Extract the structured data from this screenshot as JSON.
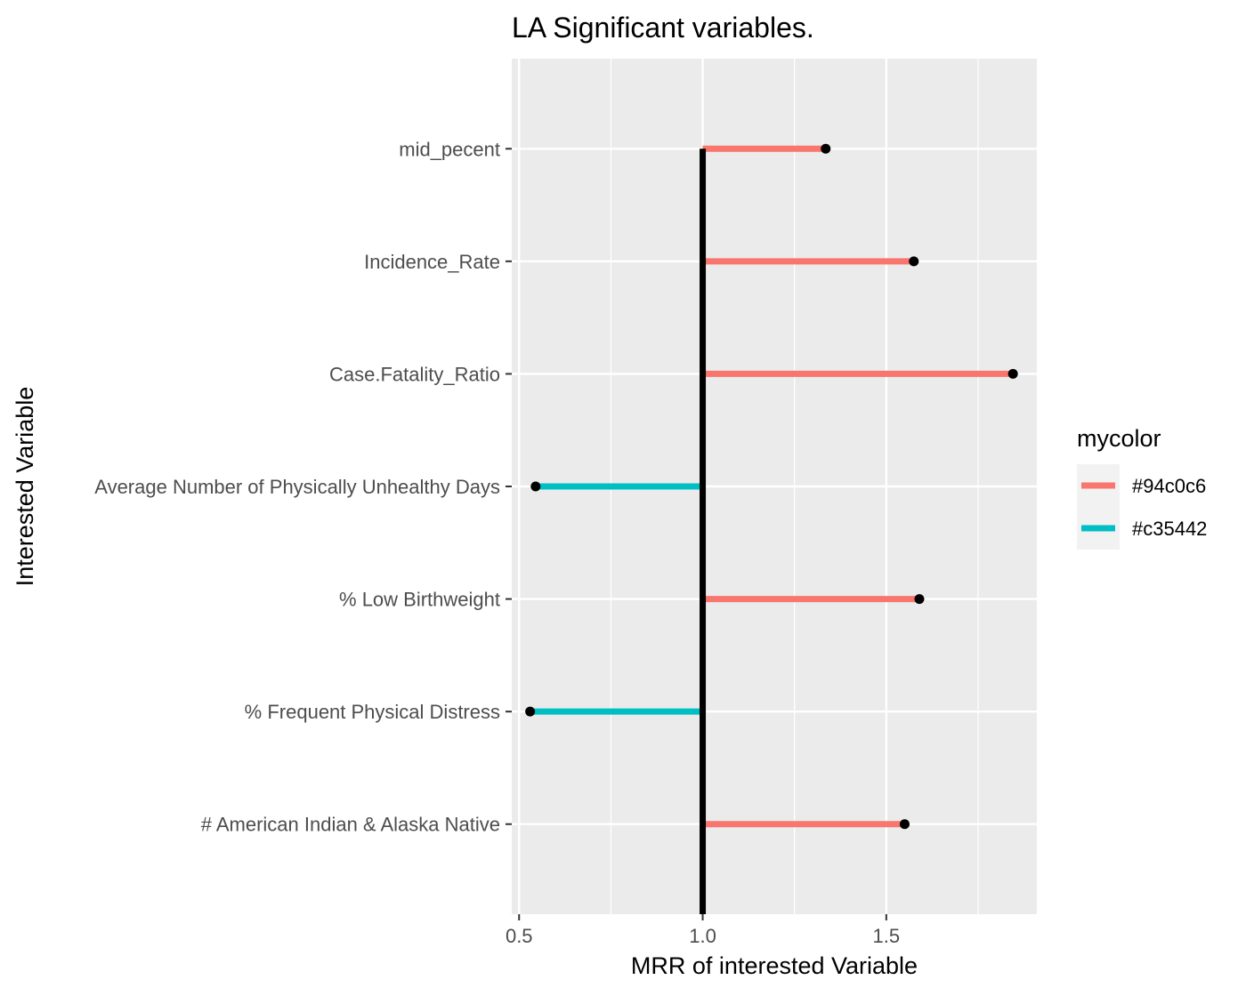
{
  "chart_data": {
    "type": "lollipop",
    "title": "LA Significant variables.",
    "xlabel": "MRR of interested Variable",
    "ylabel": "Interested Variable",
    "xlim": [
      0.48,
      1.91
    ],
    "xticks": [
      0.5,
      1.0,
      1.5
    ],
    "xtick_labels": [
      "0.5",
      "1.0",
      "1.5"
    ],
    "x_minor_ticks": [
      0.75,
      1.25,
      1.75
    ],
    "reference_line": 1.0,
    "categories": [
      "mid_pecent",
      "Incidence_Rate",
      "Case.Fatality_Ratio",
      "Average Number of Physically Unhealthy Days",
      "% Low Birthweight",
      "% Frequent Physical Distress",
      "# American Indian & Alaska Native"
    ],
    "values": [
      1.335,
      1.575,
      1.845,
      0.545,
      1.59,
      0.53,
      1.55
    ],
    "groups": [
      "#94c0c6",
      "#94c0c6",
      "#94c0c6",
      "#c35442",
      "#94c0c6",
      "#c35442",
      "#94c0c6"
    ],
    "legend": {
      "title": "mycolor",
      "position": "right",
      "entries": [
        {
          "label": "#94c0c6",
          "color": "#F8766D"
        },
        {
          "label": "#c35442",
          "color": "#00BFC4"
        }
      ]
    },
    "colors": {
      "panel_bg": "#EBEBEB",
      "grid": "#FFFFFF",
      "reference_line": "#000000",
      "points": "#000000"
    },
    "grid": true
  }
}
